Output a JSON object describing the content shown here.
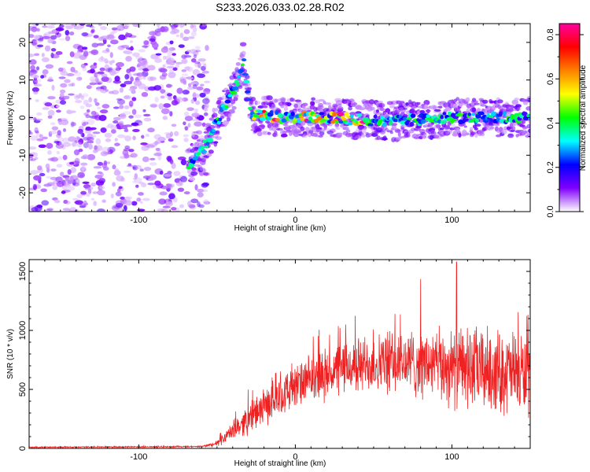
{
  "figure_title": "S233.2026.033.02.28.R02",
  "chart_data": [
    {
      "type": "heatmap",
      "name": "spectrogram",
      "title": "S233.2026.033.02.28.R02",
      "xlabel": "Height of straight line (km)",
      "ylabel": "Frequency (Hz)",
      "xlim": [
        -170,
        150
      ],
      "ylim": [
        -25,
        25
      ],
      "xticks": [
        -100,
        0,
        100
      ],
      "yticks": [
        -20,
        -10,
        0,
        10,
        20
      ],
      "signal_trace": {
        "description_points": [
          [
            -68,
            -13
          ],
          [
            -60,
            -9
          ],
          [
            -52,
            -3
          ],
          [
            -45,
            3
          ],
          [
            -38,
            8
          ],
          [
            -33,
            15
          ],
          [
            -28,
            1
          ],
          [
            -10,
            0
          ],
          [
            20,
            0
          ],
          [
            60,
            -1
          ],
          [
            100,
            0
          ],
          [
            150,
            0
          ]
        ]
      },
      "noise_region_x": [
        -170,
        -62
      ],
      "colorbar": {
        "label": "Normalized spectral amplitude",
        "range": [
          0.0,
          0.85
        ],
        "ticks": [
          "0.0",
          "0.2",
          "0.4",
          "0.6",
          "0.8"
        ],
        "colormap": [
          "#ffffff",
          "#8000ff",
          "#0000ff",
          "#00ffff",
          "#00ff00",
          "#ffff00",
          "#ff8000",
          "#ff0000",
          "#ff00a0"
        ]
      }
    },
    {
      "type": "line",
      "name": "snr",
      "xlabel": "Height of straight line (km)",
      "ylabel": "SNR (10 * v/v)",
      "xlim": [
        -170,
        150
      ],
      "ylim": [
        0,
        1600
      ],
      "xticks": [
        -100,
        0,
        100
      ],
      "yticks": [
        0,
        500,
        1000,
        1500
      ],
      "line_color": "#ee2222",
      "envelope": {
        "x": [
          -170,
          -60,
          -50,
          -40,
          -30,
          -20,
          -10,
          0,
          10,
          20,
          30,
          40,
          50,
          60,
          70,
          80,
          90,
          100,
          110,
          120,
          130,
          140,
          150
        ],
        "base": [
          10,
          15,
          40,
          150,
          250,
          350,
          450,
          520,
          580,
          630,
          680,
          700,
          720,
          720,
          730,
          720,
          700,
          690,
          680,
          670,
          650,
          640,
          620
        ],
        "spread": [
          8,
          10,
          40,
          120,
          200,
          240,
          280,
          300,
          320,
          340,
          360,
          380,
          400,
          420,
          440,
          460,
          480,
          520,
          560,
          560,
          560,
          560,
          560
        ]
      },
      "peak": {
        "x": 103,
        "y": 1580
      }
    }
  ]
}
